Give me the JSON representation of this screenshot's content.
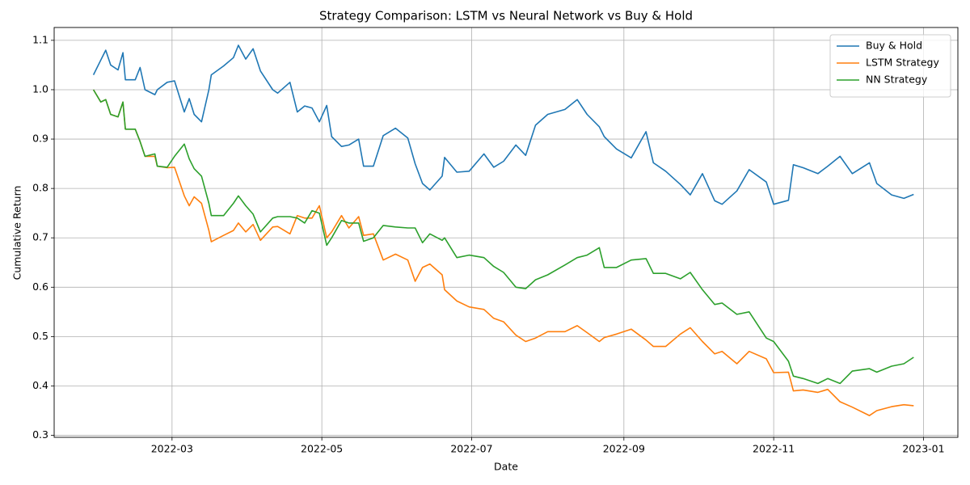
{
  "chart_data": {
    "type": "line",
    "title": "Strategy Comparison: LSTM vs Neural Network vs Buy & Hold",
    "x_label": "Date",
    "y_label": "Cumulative Return",
    "x": [
      "2022-01-28",
      "2022-01-31",
      "2022-02-02",
      "2022-02-04",
      "2022-02-07",
      "2022-02-09",
      "2022-02-10",
      "2022-02-14",
      "2022-02-16",
      "2022-02-18",
      "2022-02-22",
      "2022-02-23",
      "2022-02-27",
      "2022-03-02",
      "2022-03-06",
      "2022-03-08",
      "2022-03-10",
      "2022-03-13",
      "2022-03-16",
      "2022-03-17",
      "2022-03-22",
      "2022-03-26",
      "2022-03-28",
      "2022-03-31",
      "2022-04-03",
      "2022-04-06",
      "2022-04-11",
      "2022-04-13",
      "2022-04-18",
      "2022-04-21",
      "2022-04-24",
      "2022-04-27",
      "2022-04-30",
      "2022-05-03",
      "2022-05-05",
      "2022-05-09",
      "2022-05-12",
      "2022-05-16",
      "2022-05-18",
      "2022-05-22",
      "2022-05-26",
      "2022-05-31",
      "2022-06-05",
      "2022-06-08",
      "2022-06-11",
      "2022-06-14",
      "2022-06-19",
      "2022-06-20",
      "2022-06-25",
      "2022-06-30",
      "2022-07-06",
      "2022-07-10",
      "2022-07-14",
      "2022-07-19",
      "2022-07-23",
      "2022-07-27",
      "2022-08-01",
      "2022-08-08",
      "2022-08-13",
      "2022-08-17",
      "2022-08-22",
      "2022-08-24",
      "2022-08-29",
      "2022-09-04",
      "2022-09-10",
      "2022-09-13",
      "2022-09-18",
      "2022-09-24",
      "2022-09-28",
      "2022-10-03",
      "2022-10-08",
      "2022-10-11",
      "2022-10-17",
      "2022-10-22",
      "2022-10-29",
      "2022-11-01",
      "2022-11-07",
      "2022-11-09",
      "2022-11-13",
      "2022-11-19",
      "2022-11-23",
      "2022-11-28",
      "2022-12-03",
      "2022-12-10",
      "2022-12-13",
      "2022-12-19",
      "2022-12-24",
      "2022-12-28"
    ],
    "series": [
      {
        "name": "Buy & Hold",
        "color": "#1f77b4",
        "values": [
          1.03,
          1.06,
          1.08,
          1.05,
          1.04,
          1.075,
          1.02,
          1.02,
          1.045,
          1.0,
          0.99,
          1.0,
          1.015,
          1.018,
          0.955,
          0.982,
          0.95,
          0.935,
          1.0,
          1.03,
          1.048,
          1.065,
          1.09,
          1.062,
          1.083,
          1.038,
          1.0,
          0.993,
          1.015,
          0.955,
          0.967,
          0.963,
          0.935,
          0.968,
          0.905,
          0.885,
          0.888,
          0.9,
          0.845,
          0.845,
          0.907,
          0.922,
          0.902,
          0.85,
          0.81,
          0.797,
          0.825,
          0.863,
          0.833,
          0.835,
          0.87,
          0.843,
          0.855,
          0.888,
          0.867,
          0.928,
          0.95,
          0.96,
          0.98,
          0.95,
          0.925,
          0.905,
          0.88,
          0.862,
          0.915,
          0.852,
          0.835,
          0.808,
          0.787,
          0.83,
          0.775,
          0.768,
          0.795,
          0.838,
          0.813,
          0.768,
          0.776,
          0.848,
          0.842,
          0.83,
          0.845,
          0.865,
          0.83,
          0.852,
          0.81,
          0.787,
          0.78,
          0.788
        ]
      },
      {
        "name": "LSTM Strategy",
        "color": "#ff7f0e",
        "values": [
          1.0,
          0.975,
          0.98,
          0.95,
          0.945,
          0.975,
          0.92,
          0.92,
          0.895,
          0.865,
          0.865,
          0.845,
          0.842,
          0.843,
          0.785,
          0.765,
          0.783,
          0.77,
          0.715,
          0.692,
          0.705,
          0.715,
          0.73,
          0.712,
          0.727,
          0.695,
          0.722,
          0.723,
          0.708,
          0.745,
          0.74,
          0.74,
          0.765,
          0.7,
          0.712,
          0.745,
          0.72,
          0.743,
          0.705,
          0.708,
          0.655,
          0.667,
          0.655,
          0.612,
          0.64,
          0.647,
          0.625,
          0.595,
          0.572,
          0.56,
          0.555,
          0.537,
          0.53,
          0.503,
          0.49,
          0.497,
          0.51,
          0.51,
          0.522,
          0.508,
          0.49,
          0.498,
          0.505,
          0.515,
          0.493,
          0.48,
          0.48,
          0.505,
          0.518,
          0.49,
          0.465,
          0.47,
          0.445,
          0.47,
          0.455,
          0.427,
          0.428,
          0.39,
          0.392,
          0.387,
          0.393,
          0.368,
          0.357,
          0.34,
          0.35,
          0.358,
          0.362,
          0.36
        ]
      },
      {
        "name": "NN Strategy",
        "color": "#2ca02c",
        "values": [
          1.0,
          0.975,
          0.98,
          0.95,
          0.945,
          0.975,
          0.92,
          0.92,
          0.895,
          0.865,
          0.87,
          0.845,
          0.843,
          0.865,
          0.89,
          0.86,
          0.84,
          0.825,
          0.77,
          0.745,
          0.745,
          0.77,
          0.785,
          0.765,
          0.748,
          0.712,
          0.74,
          0.743,
          0.743,
          0.74,
          0.73,
          0.755,
          0.75,
          0.685,
          0.7,
          0.735,
          0.73,
          0.73,
          0.693,
          0.7,
          0.725,
          0.722,
          0.72,
          0.72,
          0.69,
          0.708,
          0.695,
          0.7,
          0.66,
          0.665,
          0.66,
          0.642,
          0.63,
          0.6,
          0.597,
          0.615,
          0.625,
          0.645,
          0.66,
          0.665,
          0.68,
          0.64,
          0.64,
          0.655,
          0.658,
          0.628,
          0.628,
          0.617,
          0.63,
          0.595,
          0.565,
          0.568,
          0.545,
          0.55,
          0.497,
          0.49,
          0.45,
          0.42,
          0.415,
          0.405,
          0.415,
          0.405,
          0.43,
          0.435,
          0.428,
          0.44,
          0.445,
          0.458
        ]
      }
    ],
    "xlim": [
      "2022-01-12",
      "2023-01-15"
    ],
    "xticks": [
      {
        "value": "2022-03-01",
        "label": "2022-03"
      },
      {
        "value": "2022-05-01",
        "label": "2022-05"
      },
      {
        "value": "2022-07-01",
        "label": "2022-07"
      },
      {
        "value": "2022-09-01",
        "label": "2022-09"
      },
      {
        "value": "2022-11-01",
        "label": "2022-11"
      },
      {
        "value": "2023-01-01",
        "label": "2023-01"
      }
    ],
    "ylim": [
      0.296,
      1.126
    ],
    "yticks": [
      0.3,
      0.4,
      0.5,
      0.6,
      0.7,
      0.8,
      0.9,
      {
        "value": 1,
        "label": "1.0"
      },
      1.1
    ],
    "grid": true,
    "legend": "upper right"
  }
}
